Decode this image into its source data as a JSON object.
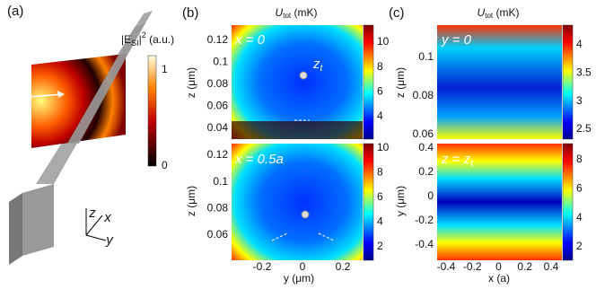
{
  "panel_a": {
    "label": "(a)",
    "colorbar_title": {
      "before": "|E",
      "subscript": "SI",
      "middle": "|",
      "superscript": "2",
      "unit": " (a.u.)"
    },
    "colorbar_ticks": [
      "1",
      "0"
    ],
    "axes": [
      "z",
      "x",
      "y"
    ]
  },
  "panel_b": {
    "label": "(b)",
    "title": {
      "symbol": "U",
      "subscript": "tot",
      "unit": " (mK)"
    },
    "top": {
      "annotation": "x = 0",
      "point_label": {
        "symbol": "z",
        "subscript": "t"
      },
      "y_label": "z (μm)",
      "yticks": [
        "0.12",
        "0.1",
        "0.08",
        "0.06",
        "0.04"
      ],
      "colorbar_ticks": [
        "10",
        "8",
        "6",
        "4"
      ]
    },
    "bottom": {
      "annotation": "x = 0.5a",
      "y_label": "z (μm)",
      "yticks": [
        "0.12",
        "0.1",
        "0.08",
        "0.06"
      ],
      "colorbar_ticks": [
        "10",
        "8",
        "6",
        "4",
        "2"
      ]
    },
    "x_label": "y (μm)",
    "xticks": [
      "-0.2",
      "0",
      "0.2"
    ]
  },
  "panel_c": {
    "label": "(c)",
    "title": {
      "symbol": "U",
      "subscript": "tot",
      "unit": " (mK)"
    },
    "top": {
      "annotation": "y = 0",
      "y_label": "z (μm)",
      "yticks": [
        "0.1",
        "0.08",
        "0.06"
      ],
      "colorbar_ticks": [
        "4",
        "3.5",
        "3",
        "2.5"
      ]
    },
    "bottom": {
      "annotation": {
        "text": "z = z",
        "subscript": "t"
      },
      "y_label": "y (μm)",
      "yticks": [
        "0.4",
        "0.2",
        "0",
        "-0.2",
        "-0.4"
      ],
      "colorbar_ticks": [
        "8",
        "6",
        "4",
        "2"
      ]
    },
    "x_label": "x (a)",
    "xticks": [
      "-0.4",
      "-0.2",
      "0",
      "0.2",
      "0.4"
    ]
  }
}
